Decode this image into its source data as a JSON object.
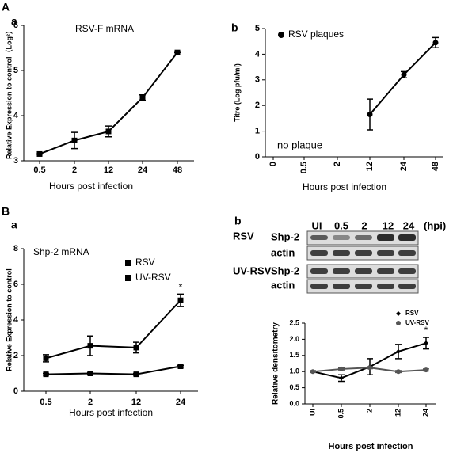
{
  "panel_labels": {
    "A": "A",
    "Aa": "a",
    "Ab": "b",
    "B": "B",
    "Ba": "a",
    "Bb": "b"
  },
  "blot": {
    "lanes": [
      "UI",
      "0.5",
      "2",
      "12",
      "24"
    ],
    "unit": "(hpi)",
    "groups": [
      {
        "name": "RSV",
        "rows": [
          "Shp-2",
          "actin"
        ]
      },
      {
        "name": "UV-RSV",
        "rows": [
          "Shp-2",
          "actin"
        ]
      }
    ]
  },
  "chart_data": [
    {
      "type": "line",
      "title": "RSV-F mRNA",
      "x_label": "Hours post infection",
      "y_label": "Relative  Expression to control（Log²）",
      "categories": [
        "0.5",
        "2",
        "12",
        "24",
        "48"
      ],
      "series": [
        {
          "color": "#000000",
          "marker": "square",
          "values": [
            3.15,
            3.45,
            3.65,
            4.4,
            5.4
          ],
          "errors": [
            0,
            0.18,
            0.12,
            0.06,
            0
          ]
        }
      ],
      "ylim": [
        3,
        6
      ],
      "yticks": [
        3,
        4,
        5,
        6
      ]
    },
    {
      "type": "line",
      "annotation": "no plaque",
      "x_label": "Hours post infection",
      "y_label": "Titre (Log pfu/ml)",
      "categories": [
        "0",
        "0.5",
        "2",
        "12",
        "24",
        "48"
      ],
      "series": [
        {
          "name": "RSV plaques",
          "color": "#000000",
          "marker": "circle",
          "values": [
            null,
            null,
            null,
            1.65,
            3.2,
            4.45
          ],
          "errors": [
            null,
            null,
            null,
            0.6,
            0.12,
            0.2
          ]
        }
      ],
      "ylim": [
        0,
        5
      ],
      "yticks": [
        0,
        1,
        2,
        3,
        4,
        5
      ]
    },
    {
      "type": "line",
      "title": "Shp-2 mRNA",
      "annotation": "*",
      "x_label": "Hours post infection",
      "y_label": "Relative  Expression to control",
      "categories": [
        "0.5",
        "2",
        "12",
        "24"
      ],
      "series": [
        {
          "name": "RSV",
          "color": "#000000",
          "marker": "square",
          "values": [
            1.85,
            2.55,
            2.45,
            5.1
          ],
          "errors": [
            0.2,
            0.55,
            0.3,
            0.35
          ]
        },
        {
          "name": "UV-RSV",
          "color": "#000000",
          "marker": "square",
          "values": [
            0.95,
            1.0,
            0.95,
            1.4
          ],
          "errors": [
            0.05,
            0.05,
            0.05,
            0.05
          ]
        }
      ],
      "ylim": [
        0,
        8
      ],
      "yticks": [
        0,
        2,
        4,
        6,
        8
      ]
    },
    {
      "type": "line",
      "annotation": "*",
      "x_label": "Hours post infection",
      "y_label": "Relative densitometry",
      "categories": [
        "UI",
        "0.5",
        "2",
        "12",
        "24"
      ],
      "series": [
        {
          "name": "RSV",
          "color": "#000000",
          "marker": "diamond",
          "values": [
            1.0,
            0.8,
            1.15,
            1.62,
            1.88
          ],
          "errors": [
            0,
            0.1,
            0.25,
            0.22,
            0.18
          ]
        },
        {
          "name": "UV-RSV",
          "color": "#555555",
          "marker": "circle",
          "values": [
            1.0,
            1.08,
            1.12,
            1.0,
            1.05
          ],
          "errors": [
            0.03,
            0.03,
            0.03,
            0.03,
            0.03
          ]
        }
      ],
      "ylim": [
        0,
        2.5
      ],
      "yticks": [
        {
          "value": 0,
          "label": "0.0"
        },
        0.5,
        {
          "value": 1,
          "label": "1.0"
        },
        1.5,
        {
          "value": 2,
          "label": "2.0"
        },
        2.5
      ]
    }
  ]
}
